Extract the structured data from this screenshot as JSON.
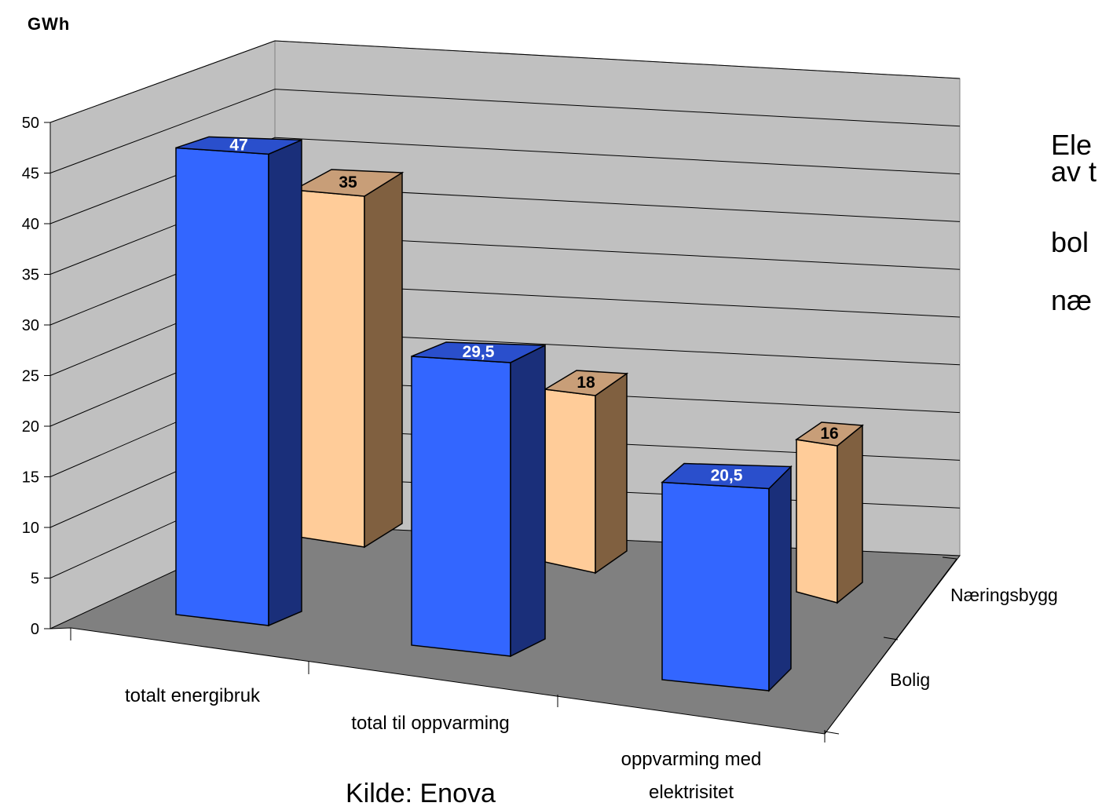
{
  "chart_data": {
    "type": "bar",
    "ylabel": "GWh",
    "ylim": [
      0,
      50
    ],
    "yticks": [
      "0",
      "5",
      "10",
      "15",
      "20",
      "25",
      "30",
      "35",
      "40",
      "45",
      "50"
    ],
    "categories": [
      "totalt energibruk",
      "total til oppvarming",
      "oppvarming med elektrisitet"
    ],
    "series": [
      {
        "name": "Bolig",
        "values": [
          47,
          29.5,
          20.5
        ],
        "labels": [
          "47",
          "29,5",
          "20,5"
        ]
      },
      {
        "name": "Næringsbygg",
        "values": [
          35,
          18,
          16
        ],
        "labels": [
          "35",
          "18",
          "16"
        ]
      }
    ],
    "grid": true,
    "legend": "depth axis right",
    "colors": {
      "bolig_front": "#3366FF",
      "bolig_top": "#2A4FCC",
      "bolig_side": "#1A2F7A",
      "naering_front": "#FFCC99",
      "naering_top": "#C89E78",
      "naering_side": "#806040",
      "wall": "#C0C0C0",
      "floor": "#808080"
    }
  },
  "side_text": {
    "line1": "Ele",
    "line2": "av t",
    "line3": "bol",
    "line4": "næ"
  },
  "source": "Kilde: Enova"
}
